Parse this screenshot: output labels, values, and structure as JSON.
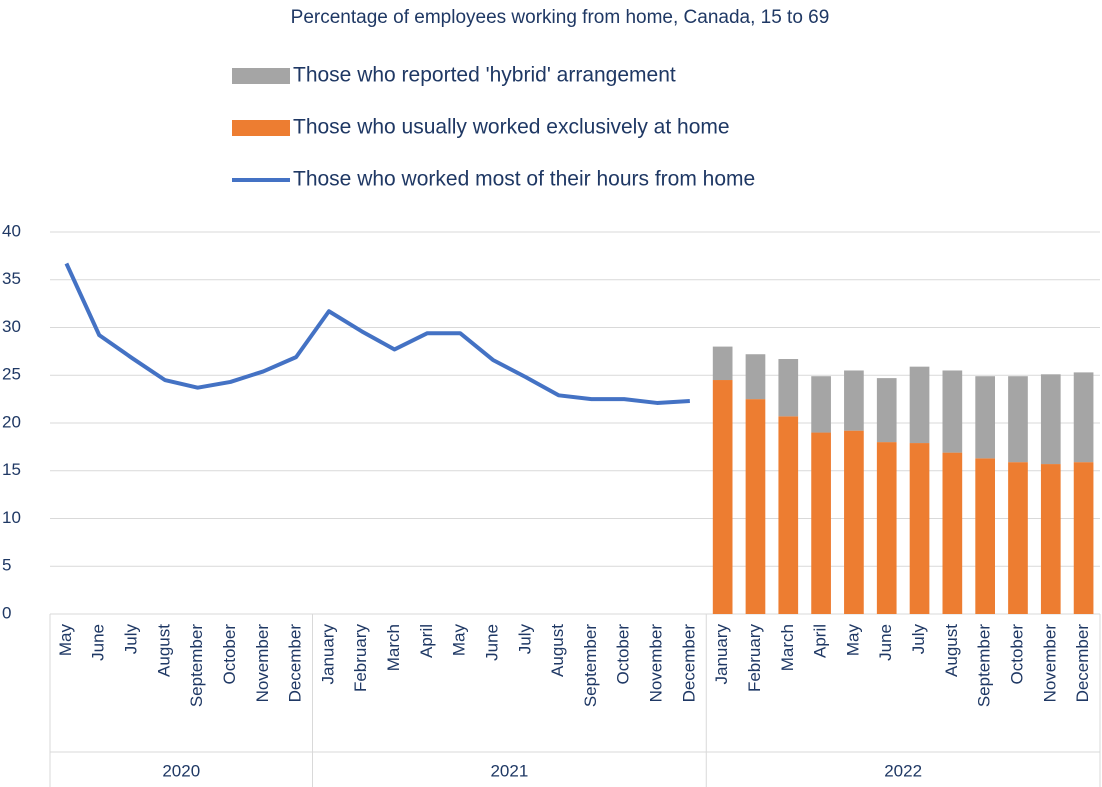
{
  "chart_data": {
    "type": "bar_line",
    "title": "Percentage of employees working from home, Canada, 15 to 69",
    "categories": [
      "May",
      "June",
      "July",
      "August",
      "September",
      "October",
      "November",
      "December",
      "January",
      "February",
      "March",
      "April",
      "May",
      "June",
      "July",
      "August",
      "September",
      "October",
      "November",
      "December",
      "January",
      "February",
      "March",
      "April",
      "May",
      "June",
      "July",
      "August",
      "September",
      "October",
      "November",
      "December"
    ],
    "category_groups": [
      {
        "label": "2020",
        "size": 8
      },
      {
        "label": "2021",
        "size": 12
      },
      {
        "label": "2022",
        "size": 12
      }
    ],
    "series": [
      {
        "name": "Those who reported 'hybrid' arrangement",
        "type": "bar",
        "stack": true,
        "color": "#a5a5a5",
        "values": [
          null,
          null,
          null,
          null,
          null,
          null,
          null,
          null,
          null,
          null,
          null,
          null,
          null,
          null,
          null,
          null,
          null,
          null,
          null,
          null,
          3.5,
          4.7,
          6.0,
          5.9,
          6.3,
          6.7,
          8.0,
          8.6,
          8.6,
          9.0,
          9.4,
          9.4
        ]
      },
      {
        "name": "Those who usually worked exclusively at home",
        "type": "bar",
        "stack": true,
        "color": "#ed7d31",
        "values": [
          null,
          null,
          null,
          null,
          null,
          null,
          null,
          null,
          null,
          null,
          null,
          null,
          null,
          null,
          null,
          null,
          null,
          null,
          null,
          null,
          24.5,
          22.5,
          20.7,
          19.0,
          19.2,
          18.0,
          17.9,
          16.9,
          16.3,
          15.9,
          15.7,
          15.9
        ]
      },
      {
        "name": "Those who worked most of their hours from home",
        "type": "line",
        "color": "#4472c4",
        "values": [
          36.7,
          29.2,
          26.8,
          24.5,
          23.7,
          24.3,
          25.4,
          26.9,
          31.7,
          29.6,
          27.7,
          29.4,
          29.4,
          26.6,
          24.8,
          22.9,
          22.5,
          22.5,
          22.1,
          22.3,
          null,
          null,
          null,
          null,
          null,
          null,
          null,
          null,
          null,
          null,
          null,
          null
        ]
      }
    ],
    "ylim": [
      0,
      40
    ],
    "yticks": [
      0,
      5,
      10,
      15,
      20,
      25,
      30,
      35,
      40
    ],
    "grid": true
  }
}
